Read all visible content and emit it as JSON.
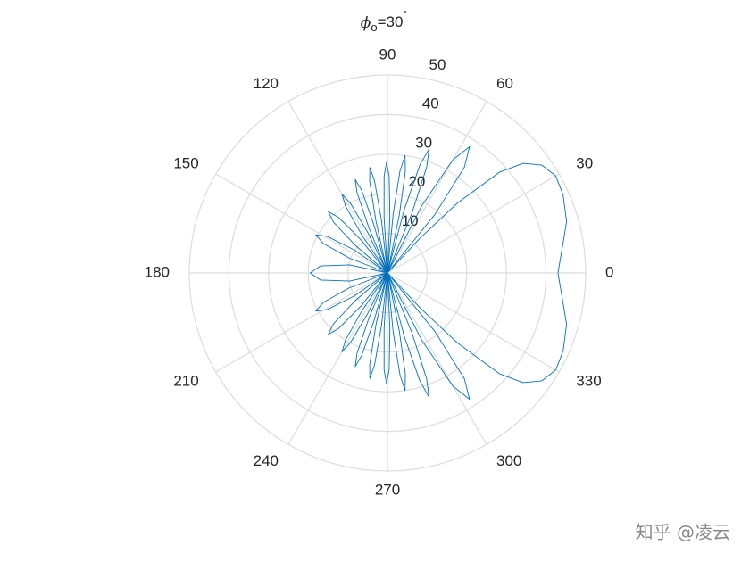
{
  "chart_data": {
    "type": "polar",
    "title": {
      "symbol": "ϕ",
      "sub": "o",
      "text": "=30",
      "sup": "°"
    },
    "theta_unit": "degrees",
    "rlim": [
      0,
      50
    ],
    "rticks": [
      10,
      20,
      30,
      40,
      50
    ],
    "thetaticks": [
      0,
      30,
      60,
      90,
      120,
      150,
      180,
      210,
      240,
      270,
      300,
      330
    ],
    "grid": true,
    "series": [
      {
        "color": "#0072bd",
        "theta": [
          0,
          8,
          16,
          24,
          30,
          35,
          39,
          42,
          45,
          47,
          48,
          51,
          54,
          57,
          60,
          63,
          66,
          67.8,
          69.7,
          71.5,
          73.3,
          75.2,
          77,
          78.5,
          80,
          81.5,
          83,
          84.5,
          86,
          87.5,
          89,
          90.5,
          92,
          93.5,
          95,
          96.5,
          98,
          99.5,
          101,
          102.5,
          104,
          105.7,
          107.3,
          109,
          110.7,
          112.3,
          114,
          116,
          118,
          120,
          122,
          124,
          126,
          128.7,
          131.3,
          134,
          136.7,
          139.3,
          142,
          145.3,
          148.7,
          152,
          155.3,
          158.7,
          162,
          168,
          174,
          180,
          186,
          192,
          198,
          201.3,
          204.7,
          208,
          211.3,
          214.7,
          218,
          220.7,
          223.3,
          226,
          228.7,
          231.3,
          234,
          236,
          238,
          240,
          242,
          244,
          246,
          247.7,
          249.3,
          251,
          252.7,
          254.3,
          256,
          257.5,
          259,
          260.5,
          262,
          263.5,
          265,
          266.5,
          268,
          269.5,
          271,
          272.5,
          274,
          275.5,
          277,
          278.5,
          280,
          281.5,
          283,
          284.8,
          286.7,
          288.5,
          290.3,
          292.2,
          294,
          297,
          300,
          303,
          306,
          309,
          312,
          313,
          315,
          318,
          321,
          325,
          330,
          336,
          344,
          352,
          360
        ],
        "values": [
          43,
          44.5,
          47,
          48.5,
          49,
          47.5,
          44,
          38,
          25,
          12,
          0,
          19,
          33,
          38,
          33,
          19,
          0,
          16.5,
          28.5,
          33,
          28.5,
          16.5,
          0,
          15,
          26,
          30,
          26,
          15,
          0,
          14,
          24.4,
          28,
          24.4,
          14,
          0,
          13.5,
          23.5,
          27,
          23.5,
          13.5,
          0,
          12.5,
          21.8,
          25,
          21.8,
          12.5,
          0,
          11.5,
          20,
          23,
          20,
          11.5,
          0,
          10.8,
          18.7,
          21.5,
          18.7,
          10.8,
          0,
          10.3,
          17.8,
          20.5,
          17.8,
          10.3,
          0,
          9.8,
          17,
          19.5,
          17,
          9.8,
          0,
          10.3,
          17.8,
          20.5,
          17.8,
          10.3,
          0,
          10.8,
          18.7,
          21.5,
          18.7,
          10.8,
          0,
          11.5,
          20,
          23,
          20,
          11.5,
          0,
          12.5,
          21.8,
          25,
          21.8,
          12.5,
          0,
          13.5,
          23.5,
          27,
          23.5,
          13.5,
          0,
          14,
          24.4,
          28,
          24.4,
          14,
          0,
          15,
          26,
          30,
          26,
          15,
          0,
          16.5,
          28.5,
          33,
          28.5,
          16.5,
          0,
          19,
          33,
          38,
          33,
          19,
          0,
          12,
          25,
          38,
          44,
          47.5,
          49,
          48.5,
          47,
          44.5,
          43
        ]
      }
    ]
  },
  "watermark": "知乎 @凌云"
}
